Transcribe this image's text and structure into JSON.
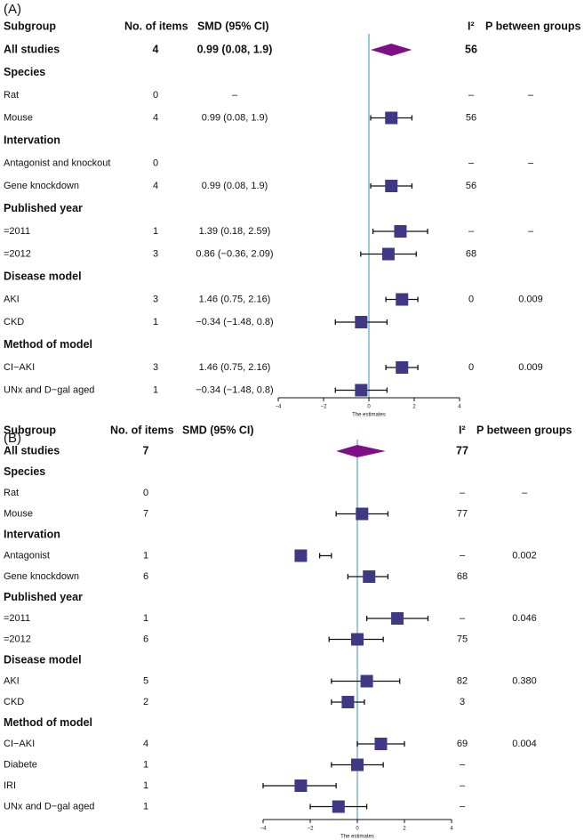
{
  "chart_data": [
    {
      "type": "forest",
      "panel_label": "(A)",
      "headers": {
        "subgroup": "Subgroup",
        "items": "No. of items",
        "smd": "SMD (95% CI)",
        "i2": "I²",
        "p": "P between groups"
      },
      "xlabel": "The estimates",
      "xticks": [
        -4,
        -2,
        0,
        2,
        4
      ],
      "xlim": [
        -4,
        4
      ],
      "reference_line": 0,
      "rows": [
        {
          "label": "All studies",
          "bold": true,
          "n": "4",
          "smd_text": "0.99 (0.08, 1.9)",
          "i2": "56",
          "p": "",
          "est": 0.99,
          "lo": 0.08,
          "hi": 1.9,
          "shape": "diamond"
        },
        {
          "label": "Species",
          "group": true
        },
        {
          "label": "Rat",
          "n": "0",
          "smd_text": "–",
          "i2": "–",
          "p": "–"
        },
        {
          "label": "Mouse",
          "n": "4",
          "smd_text": "0.99 (0.08, 1.9)",
          "i2": "56",
          "p": "",
          "est": 0.99,
          "lo": 0.08,
          "hi": 1.9
        },
        {
          "label": "Intervation",
          "group": true
        },
        {
          "label": "Antagonist and knockout",
          "n": "0",
          "smd_text": "",
          "i2": "–",
          "p": "–"
        },
        {
          "label": "Gene knockdown",
          "n": "4",
          "smd_text": "0.99 (0.08, 1.9)",
          "i2": "56",
          "p": "",
          "est": 0.99,
          "lo": 0.08,
          "hi": 1.9
        },
        {
          "label": "Published year",
          "group": true
        },
        {
          "label": "=2011",
          "n": "1",
          "smd_text": "1.39 (0.18, 2.59)",
          "i2": "–",
          "p": "–",
          "est": 1.39,
          "lo": 0.18,
          "hi": 2.59
        },
        {
          "label": "=2012",
          "n": "3",
          "smd_text": "0.86 (−0.36, 2.09)",
          "i2": "68",
          "p": "",
          "est": 0.86,
          "lo": -0.36,
          "hi": 2.09
        },
        {
          "label": "Disease model",
          "group": true
        },
        {
          "label": "AKI",
          "n": "3",
          "smd_text": "1.46 (0.75, 2.16)",
          "i2": "0",
          "p": "0.009",
          "est": 1.46,
          "lo": 0.75,
          "hi": 2.16
        },
        {
          "label": "CKD",
          "n": "1",
          "smd_text": "−0.34 (−1.48, 0.8)",
          "i2": "",
          "p": "",
          "est": -0.34,
          "lo": -1.48,
          "hi": 0.8
        },
        {
          "label": "Method of model",
          "group": true
        },
        {
          "label": "CI−AKI",
          "n": "3",
          "smd_text": "1.46 (0.75, 2.16)",
          "i2": "0",
          "p": "0.009",
          "est": 1.46,
          "lo": 0.75,
          "hi": 2.16
        },
        {
          "label": "UNx and D−gal aged",
          "n": "1",
          "smd_text": "−0.34 (−1.48, 0.8)",
          "i2": "",
          "p": "",
          "est": -0.34,
          "lo": -1.48,
          "hi": 0.8
        }
      ]
    },
    {
      "type": "forest",
      "panel_label": "(B)",
      "headers": {
        "subgroup": "Subgroup",
        "items": "No. of items",
        "smd": "SMD (95% CI)",
        "i2": "I²",
        "p": "P between groups"
      },
      "xlabel": "The estimates",
      "xticks": [
        -4,
        -2,
        0,
        2,
        4
      ],
      "xlim": [
        -4,
        4
      ],
      "reference_line": 0,
      "rows": [
        {
          "label": "All studies",
          "bold": true,
          "n": "7",
          "smd_text": "",
          "i2": "77",
          "p": "",
          "est": 0.0,
          "lo": -0.9,
          "hi": 1.2,
          "shape": "diamond"
        },
        {
          "label": "Species",
          "group": true
        },
        {
          "label": "Rat",
          "n": "0",
          "smd_text": "",
          "i2": "–",
          "p": "–"
        },
        {
          "label": "Mouse",
          "n": "7",
          "smd_text": "",
          "i2": "77",
          "p": "",
          "est": 0.2,
          "lo": -0.9,
          "hi": 1.3
        },
        {
          "label": "Intervation",
          "group": true
        },
        {
          "label": "Antagonist",
          "n": "1",
          "smd_text": "",
          "i2": "–",
          "p": "0.002",
          "est": -2.4,
          "lo": -1.6,
          "hi": -1.1
        },
        {
          "label": "Gene knockdown",
          "n": "6",
          "smd_text": "",
          "i2": "68",
          "p": "",
          "est": 0.5,
          "lo": -0.4,
          "hi": 1.3
        },
        {
          "label": "Published year",
          "group": true
        },
        {
          "label": "=2011",
          "n": "1",
          "smd_text": "",
          "i2": "–",
          "p": "0.046",
          "est": 1.7,
          "lo": 0.4,
          "hi": 3.0
        },
        {
          "label": "=2012",
          "n": "6",
          "smd_text": "",
          "i2": "75",
          "p": "",
          "est": 0.0,
          "lo": -1.2,
          "hi": 1.1
        },
        {
          "label": "Disease model",
          "group": true
        },
        {
          "label": "AKI",
          "n": "5",
          "smd_text": "",
          "i2": "82",
          "p": "0.380",
          "est": 0.4,
          "lo": -1.1,
          "hi": 1.8
        },
        {
          "label": "CKD",
          "n": "2",
          "smd_text": "",
          "i2": "3",
          "p": "",
          "est": -0.4,
          "lo": -1.1,
          "hi": 0.3
        },
        {
          "label": "Method of model",
          "group": true
        },
        {
          "label": "CI−AKI",
          "n": "4",
          "smd_text": "",
          "i2": "69",
          "p": "0.004",
          "est": 1.0,
          "lo": 0.0,
          "hi": 2.0
        },
        {
          "label": "Diabete",
          "n": "1",
          "smd_text": "",
          "i2": "–",
          "p": "",
          "est": 0.0,
          "lo": -1.1,
          "hi": 1.1
        },
        {
          "label": "IRI",
          "n": "1",
          "smd_text": "",
          "i2": "–",
          "p": "",
          "est": -2.4,
          "lo": -4.0,
          "hi": -0.9
        },
        {
          "label": "UNx and D−gal aged",
          "n": "1",
          "smd_text": "",
          "i2": "–",
          "p": "",
          "est": -0.8,
          "lo": -2.0,
          "hi": 0.4
        }
      ]
    }
  ]
}
